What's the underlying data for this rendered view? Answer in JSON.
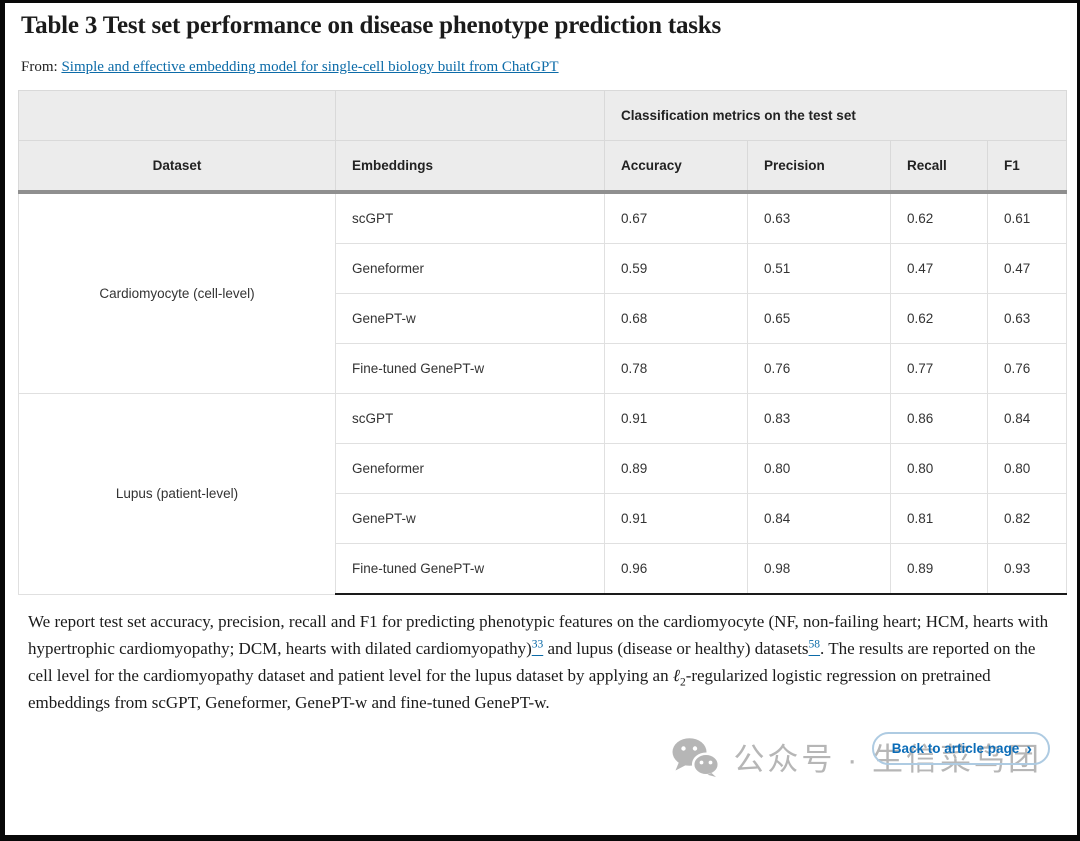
{
  "page": {
    "title": "Table 3 Test set performance on disease phenotype prediction tasks",
    "from_label": "From: ",
    "from_link": "Simple and effective embedding model for single-cell biology built from ChatGPT"
  },
  "table": {
    "group_header": "Classification metrics on the test set",
    "columns": [
      "Dataset",
      "Embeddings",
      "Accuracy",
      "Precision",
      "Recall",
      "F1"
    ],
    "groups": [
      {
        "dataset": "Cardiomyocyte (cell-level)",
        "rows": [
          {
            "embedding": "scGPT",
            "accuracy": "0.67",
            "precision": "0.63",
            "recall": "0.62",
            "f1": "0.61"
          },
          {
            "embedding": "Geneformer",
            "accuracy": "0.59",
            "precision": "0.51",
            "recall": "0.47",
            "f1": "0.47"
          },
          {
            "embedding": "GenePT-w",
            "accuracy": "0.68",
            "precision": "0.65",
            "recall": "0.62",
            "f1": "0.63"
          },
          {
            "embedding": "Fine-tuned GenePT-w",
            "accuracy": "0.78",
            "precision": "0.76",
            "recall": "0.77",
            "f1": "0.76"
          }
        ]
      },
      {
        "dataset": "Lupus (patient-level)",
        "rows": [
          {
            "embedding": "scGPT",
            "accuracy": "0.91",
            "precision": "0.83",
            "recall": "0.86",
            "f1": "0.84"
          },
          {
            "embedding": "Geneformer",
            "accuracy": "0.89",
            "precision": "0.80",
            "recall": "0.80",
            "f1": "0.80"
          },
          {
            "embedding": "GenePT-w",
            "accuracy": "0.91",
            "precision": "0.84",
            "recall": "0.81",
            "f1": "0.82"
          },
          {
            "embedding": "Fine-tuned GenePT-w",
            "accuracy": "0.96",
            "precision": "0.98",
            "recall": "0.89",
            "f1": "0.93"
          }
        ]
      }
    ]
  },
  "footnote": {
    "part1": "We report test set accuracy, precision, recall and F1 for predicting phenotypic features on the cardiomyocyte (NF, non-failing heart; HCM, hearts with hypertrophic cardiomyopathy; DCM, hearts with dilated cardiomyopathy)",
    "ref1": "33",
    "part2": " and lupus (disease or healthy) datasets",
    "ref2": "58",
    "part3": ". The results are reported on the cell level for the cardiomyopathy dataset and patient level for the lupus dataset by applying an ",
    "math_symbol": "ℓ",
    "math_sub": "2",
    "part4": "-regularized logistic regression on pretrained embeddings from scGPT, Geneformer, GenePT-w and fine-tuned GenePT-w."
  },
  "watermark": {
    "icon": "wechat-icon",
    "text": "公众号 · 生信菜鸟团"
  },
  "back_button": {
    "label": "Back to article page",
    "chevron": "›"
  },
  "colors": {
    "link": "#0c6ba8",
    "button_text": "#0a6cb8",
    "button_border": "#aecbe2",
    "header_bg": "#ececec",
    "header_border": "#d9d9d9",
    "thick_rule": "#8f8f8f",
    "cell_border": "#e0e0e0",
    "table_bottom_rule": "#1a1a1a",
    "watermark_gray": "#b6b6b6",
    "frame_black": "#080808",
    "text": "#1b1b1b"
  }
}
